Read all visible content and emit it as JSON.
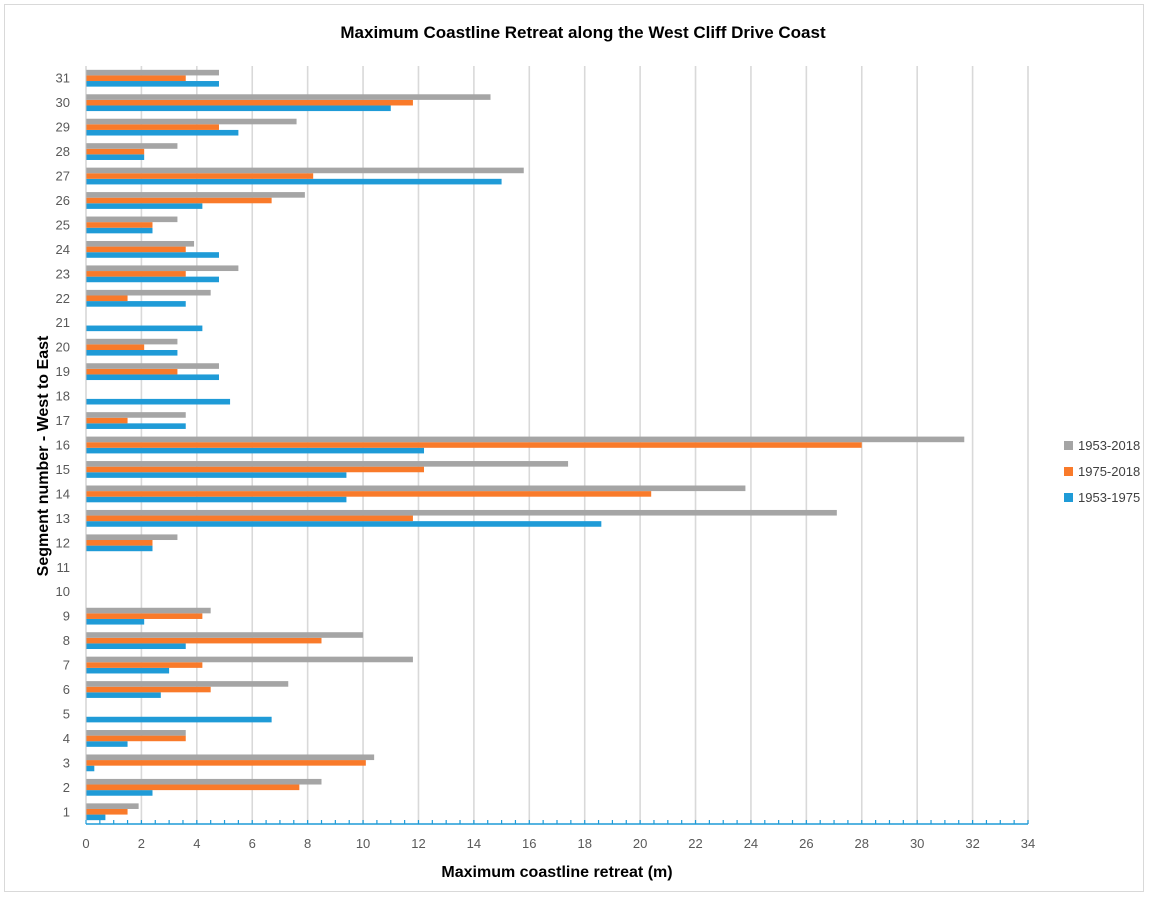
{
  "chart_data": {
    "type": "bar",
    "orientation": "horizontal",
    "title": "Maximum Coastline Retreat along the West Cliff Drive Coast",
    "xlabel": "Maximum coastline retreat (m)",
    "ylabel": "Segment number - West to East",
    "xlim": [
      0,
      34
    ],
    "x_ticks": [
      "0",
      "2",
      "4",
      "6",
      "8",
      "10",
      "12",
      "14",
      "16",
      "18",
      "20",
      "22",
      "24",
      "26",
      "28",
      "30",
      "32",
      "34"
    ],
    "categories": [
      "1",
      "2",
      "3",
      "4",
      "5",
      "6",
      "7",
      "8",
      "9",
      "10",
      "11",
      "12",
      "13",
      "14",
      "15",
      "16",
      "17",
      "18",
      "19",
      "20",
      "21",
      "22",
      "23",
      "24",
      "25",
      "26",
      "27",
      "28",
      "29",
      "30",
      "31"
    ],
    "series": [
      {
        "name": "1953-1975",
        "color": "#1f9bd7",
        "values": [
          0.7,
          2.4,
          0.3,
          1.5,
          6.7,
          2.7,
          3.0,
          3.6,
          2.1,
          0,
          0,
          2.4,
          18.6,
          9.4,
          9.4,
          12.2,
          3.6,
          5.2,
          4.8,
          3.3,
          4.2,
          3.6,
          4.8,
          4.8,
          2.4,
          4.2,
          15.0,
          2.1,
          5.5,
          11.0,
          4.8
        ]
      },
      {
        "name": "1975-2018",
        "color": "#f97a2a",
        "values": [
          1.5,
          7.7,
          10.1,
          3.6,
          0,
          4.5,
          4.2,
          8.5,
          4.2,
          0,
          0,
          2.4,
          11.8,
          20.4,
          12.2,
          28.0,
          1.5,
          0,
          3.3,
          2.1,
          0,
          1.5,
          3.6,
          3.6,
          2.4,
          6.7,
          8.2,
          2.1,
          4.8,
          11.8,
          3.6
        ]
      },
      {
        "name": "1953-2018",
        "color": "#a5a5a5",
        "values": [
          1.9,
          8.5,
          10.4,
          3.6,
          0,
          7.3,
          11.8,
          10.0,
          4.5,
          0,
          0,
          3.3,
          27.1,
          23.8,
          17.4,
          31.7,
          3.6,
          0,
          4.8,
          3.3,
          0,
          4.5,
          5.5,
          3.9,
          3.3,
          7.9,
          15.8,
          3.3,
          7.6,
          14.6,
          4.8
        ]
      }
    ],
    "legend_order": [
      "1953-2018",
      "1975-2018",
      "1953-1975"
    ],
    "legend_position": "right",
    "grid": "vertical"
  }
}
